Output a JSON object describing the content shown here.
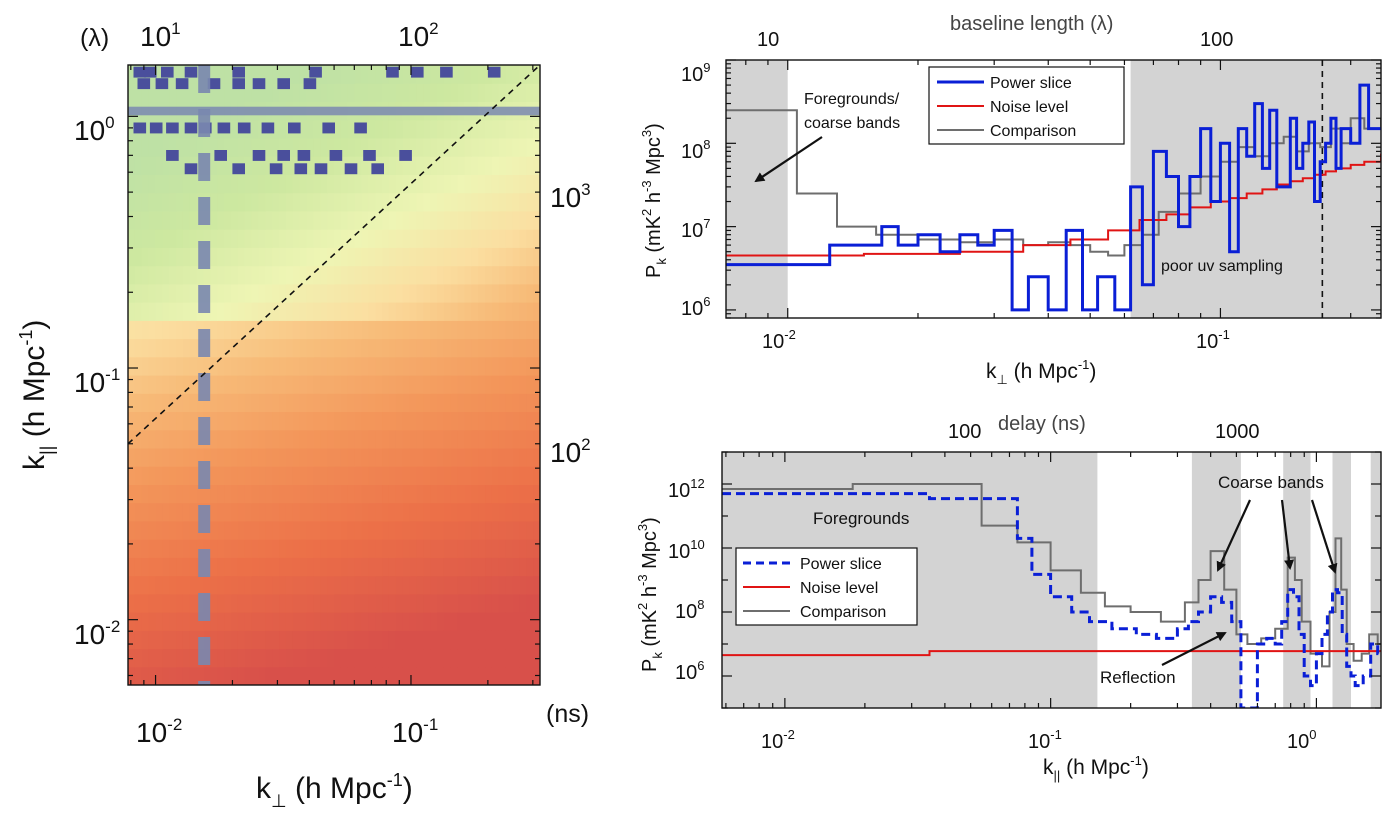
{
  "colors": {
    "blue": "#0a1fd6",
    "red": "#e01414",
    "gray": "#6e6e6e",
    "shade": "#d3d3d3",
    "band": "#7a88b0"
  },
  "left": {
    "top_unit": "(λ)",
    "top_ticks": [
      "10",
      "1",
      "10",
      "2"
    ],
    "right_unit": "(ns)",
    "right_ticks": [
      {
        "base": "10",
        "exp": "3"
      },
      {
        "base": "10",
        "exp": "2"
      }
    ],
    "x_ticks": [
      {
        "base": "10",
        "exp": "-2"
      },
      {
        "base": "10",
        "exp": "-1"
      }
    ],
    "y_ticks": [
      {
        "base": "10",
        "exp": "0"
      },
      {
        "base": "10",
        "exp": "-1"
      },
      {
        "base": "10",
        "exp": "-2"
      }
    ],
    "xlabel": {
      "pre": "k",
      "sub": "⊥",
      "post": " (h Mpc",
      "sup": "-1",
      "close": ")"
    },
    "ylabel": {
      "pre": "k",
      "sub": "||",
      "post": " (h Mpc",
      "sup": "-1",
      "close": ")"
    }
  },
  "chart_data": [
    {
      "type": "heatmap",
      "title": "",
      "xlabel": "k⊥ (h Mpc-1)",
      "ylabel": "k|| (h Mpc-1)",
      "xscale": "log",
      "yscale": "log",
      "xlim": [
        0.0078,
        0.32
      ],
      "ylim": [
        0.0055,
        1.6
      ],
      "top_axis": {
        "label": "(λ)",
        "ticks": [
          10,
          100
        ]
      },
      "right_axis": {
        "label": "(ns)",
        "ticks": [
          100,
          1000
        ]
      },
      "overlays": {
        "wedge_line": "dashed diagonal from (0.0078, 0.05) to (0.32, 1.6)",
        "horizontal_band_k_par": 1.05,
        "vertical_band_k_perp": 0.0155
      },
      "colormap": "green-yellow (high k||) to orange-red (low k||)"
    },
    {
      "type": "line",
      "title": "baseline length (λ)",
      "xlabel": "k⊥ (h Mpc-1)",
      "ylabel": "Pk (mK2 h-3 Mpc3)",
      "xscale": "log",
      "yscale": "log",
      "xlim": [
        0.0072,
        0.235
      ],
      "ylim": [
        800000.0,
        1000000000.0
      ],
      "top_axis_ticks": [
        "10",
        "100"
      ],
      "legend": "top-center",
      "shaded_regions": [
        [
          0.0072,
          0.01
        ],
        [
          0.062,
          0.235
        ]
      ],
      "vertical_dashed_line": 0.172,
      "annotations": [
        "Foregrounds/",
        "coarse bands",
        "poor uv sampling"
      ],
      "series": [
        {
          "name": "Power slice",
          "color": "#0a1fd6",
          "x": [
            0.0072,
            0.0125,
            0.0165,
            0.018,
            0.02,
            0.0225,
            0.025,
            0.0275,
            0.03,
            0.033,
            0.036,
            0.04,
            0.044,
            0.048,
            0.052,
            0.057,
            0.062,
            0.066,
            0.07,
            0.075,
            0.08,
            0.085,
            0.09,
            0.095,
            0.1,
            0.105,
            0.11,
            0.115,
            0.12,
            0.125,
            0.13,
            0.135,
            0.14,
            0.145,
            0.15,
            0.155,
            0.16,
            0.165,
            0.17,
            0.175,
            0.18,
            0.185,
            0.19,
            0.2,
            0.21,
            0.22
          ],
          "y": [
            3500000.0,
            6000000.0,
            10000000.0,
            6000000.0,
            8000000.0,
            5000000.0,
            8000000.0,
            6000000.0,
            9000000.0,
            1000000.0,
            2500000.0,
            1000000.0,
            9000000.0,
            1000000.0,
            2500000.0,
            1000000.0,
            30000000.0,
            2000000.0,
            80000000.0,
            40000000.0,
            10000000.0,
            40000000.0,
            150000000.0,
            20000000.0,
            100000000.0,
            5000000.0,
            150000000.0,
            70000000.0,
            300000000.0,
            50000000.0,
            250000000.0,
            30000000.0,
            30000000.0,
            200000000.0,
            50000000.0,
            100000000.0,
            180000000.0,
            20000000.0,
            60000000.0,
            100000000.0,
            200000000.0,
            50000000.0,
            150000000.0,
            100000000.0,
            500000000.0,
            150000000.0
          ]
        },
        {
          "name": "Noise level",
          "color": "#e01414",
          "x": [
            0.0072,
            0.015,
            0.025,
            0.035,
            0.045,
            0.055,
            0.065,
            0.075,
            0.085,
            0.095,
            0.105,
            0.115,
            0.125,
            0.135,
            0.145,
            0.155,
            0.165,
            0.175,
            0.185,
            0.2,
            0.215,
            0.235
          ],
          "y": [
            4500000.0,
            4700000.0,
            5000000.0,
            6000000.0,
            7000000.0,
            9000000.0,
            12000000.0,
            14000000.0,
            17000000.0,
            20000000.0,
            22000000.0,
            25000000.0,
            28000000.0,
            32000000.0,
            35000000.0,
            38000000.0,
            42000000.0,
            46000000.0,
            50000000.0,
            55000000.0,
            60000000.0,
            75000000.0
          ]
        },
        {
          "name": "Comparison",
          "color": "#6e6e6e",
          "x": [
            0.0072,
            0.0105,
            0.013,
            0.016,
            0.02,
            0.025,
            0.03,
            0.035,
            0.04,
            0.045,
            0.05,
            0.055,
            0.06,
            0.066,
            0.072,
            0.08,
            0.09,
            0.1,
            0.11,
            0.12,
            0.13,
            0.14,
            0.15,
            0.16,
            0.17,
            0.18,
            0.19,
            0.2,
            0.215,
            0.235
          ],
          "y": [
            250000000.0,
            25000000.0,
            10000000.0,
            8000000.0,
            7000000.0,
            6500000.0,
            7000000.0,
            6000000.0,
            6500000.0,
            6000000.0,
            5000000.0,
            4500000.0,
            6000000.0,
            8000000.0,
            15000000.0,
            25000000.0,
            40000000.0,
            60000000.0,
            90000000.0,
            70000000.0,
            100000000.0,
            120000000.0,
            80000000.0,
            100000000.0,
            90000000.0,
            150000000.0,
            100000000.0,
            200000000.0,
            150000000.0,
            200000000.0
          ]
        }
      ]
    },
    {
      "type": "line",
      "title": "delay (ns)",
      "xlabel": "k|| (h Mpc-1)",
      "ylabel": "Pk (mK2 h-3 Mpc3)",
      "xscale": "log",
      "yscale": "log",
      "xlim": [
        0.0058,
        1.75
      ],
      "ylim": [
        100000.0,
        10000000000000.0
      ],
      "top_axis_ticks": [
        "100",
        "1000"
      ],
      "legend": "center-left",
      "shaded_regions": [
        [
          0.0058,
          0.15
        ],
        [
          0.34,
          0.52
        ],
        [
          0.75,
          0.95
        ],
        [
          1.15,
          1.35
        ],
        [
          1.6,
          1.75
        ]
      ],
      "annotations": [
        "Foregrounds",
        "Coarse bands",
        "Reflection"
      ],
      "series": [
        {
          "name": "Power slice",
          "color": "#0a1fd6",
          "dash": "dashed",
          "x": [
            0.0058,
            0.035,
            0.075,
            0.085,
            0.1,
            0.12,
            0.14,
            0.17,
            0.21,
            0.25,
            0.3,
            0.33,
            0.36,
            0.4,
            0.44,
            0.48,
            0.52,
            0.56,
            0.6,
            0.65,
            0.7,
            0.74,
            0.78,
            0.82,
            0.86,
            0.9,
            0.95,
            1.0,
            1.05,
            1.1,
            1.15,
            1.2,
            1.25,
            1.3,
            1.35,
            1.4,
            1.5,
            1.6,
            1.7
          ],
          "y": [
            500000000000.0,
            350000000000.0,
            20000000000.0,
            1500000000.0,
            300000000.0,
            100000000.0,
            50000000.0,
            30000000.0,
            20000000.0,
            15000000.0,
            30000000.0,
            50000000.0,
            100000000.0,
            300000000.0,
            200000000.0,
            50000000.0,
            100000.0,
            100000.0,
            10000000.0,
            15000000.0,
            10000000.0,
            50000000.0,
            500000000.0,
            300000000.0,
            20000000.0,
            1000000.0,
            500000.0,
            5000000.0,
            20000000.0,
            100000000.0,
            500000000.0,
            400000000.0,
            20000000.0,
            2000000.0,
            1000000.0,
            500000.0,
            1000000.0,
            10000000.0,
            5000000.0
          ]
        },
        {
          "name": "Noise level",
          "color": "#e01414",
          "x": [
            0.0058,
            0.035,
            1.75
          ],
          "y": [
            4500000.0,
            6000000.0,
            6500000.0
          ]
        },
        {
          "name": "Comparison",
          "color": "#6e6e6e",
          "x": [
            0.0058,
            0.018,
            0.055,
            0.075,
            0.1,
            0.13,
            0.16,
            0.2,
            0.26,
            0.32,
            0.36,
            0.4,
            0.45,
            0.5,
            0.55,
            0.62,
            0.7,
            0.78,
            0.83,
            0.88,
            0.95,
            1.05,
            1.12,
            1.18,
            1.24,
            1.3,
            1.38,
            1.48,
            1.58,
            1.7
          ],
          "y": [
            700000000000.0,
            1000000000000.0,
            50000000000.0,
            15000000000.0,
            2000000000.0,
            400000000.0,
            150000000.0,
            100000000.0,
            50000000.0,
            200000000.0,
            1000000000.0,
            8000000000.0,
            500000000.0,
            20000000.0,
            10000000.0,
            15000000.0,
            30000000.0,
            5000000000.0,
            1000000000.0,
            50000000.0,
            5000000.0,
            2000000.0,
            100000000.0,
            20000000000.0,
            500000000.0,
            10000000.0,
            3000000.0,
            5000000.0,
            20000000.0,
            10000000.0
          ]
        }
      ]
    }
  ],
  "top_right": {
    "title": "baseline length (λ)",
    "top_ticks": [
      "10",
      "100"
    ],
    "y_ticks": [
      {
        "base": "10",
        "exp": "9"
      },
      {
        "base": "10",
        "exp": "8"
      },
      {
        "base": "10",
        "exp": "7"
      },
      {
        "base": "10",
        "exp": "6"
      }
    ],
    "x_ticks": [
      {
        "base": "10",
        "exp": "-2"
      },
      {
        "base": "10",
        "exp": "-1"
      }
    ],
    "xlabel": {
      "pre": "k",
      "sub": "⊥",
      "post": " (h Mpc",
      "sup": "-1",
      "close": ")"
    },
    "ylabel": "P_k (mK^2 h^-3 Mpc^3)",
    "legend": [
      "Power slice",
      "Noise level",
      "Comparison"
    ],
    "annotation_fg_line1": "Foregrounds/",
    "annotation_fg_line2": "coarse bands",
    "annotation_uv": "poor uv sampling"
  },
  "bottom_right": {
    "title": "delay (ns)",
    "top_ticks": [
      "100",
      "1000"
    ],
    "y_ticks": [
      {
        "base": "10",
        "exp": "12"
      },
      {
        "base": "10",
        "exp": "10"
      },
      {
        "base": "10",
        "exp": "8"
      },
      {
        "base": "10",
        "exp": "6"
      }
    ],
    "x_ticks": [
      {
        "base": "10",
        "exp": "-2"
      },
      {
        "base": "10",
        "exp": "-1"
      },
      {
        "base": "10",
        "exp": "0"
      }
    ],
    "xlabel": {
      "pre": "k",
      "sub": "||",
      "post": " (h Mpc",
      "sup": "-1",
      "close": ")"
    },
    "ylabel": "P_k (mK^2 h^-3 Mpc^3)",
    "legend": [
      "Power slice",
      "Noise level",
      "Comparison"
    ],
    "annotation_fg": "Foregrounds",
    "annotation_cb": "Coarse bands",
    "annotation_refl": "Reflection"
  }
}
